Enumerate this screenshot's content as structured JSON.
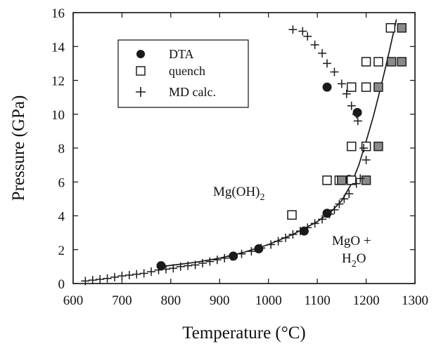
{
  "chart_data": {
    "type": "scatter",
    "xlabel": "Temperature (°C)",
    "ylabel": "Pressure (GPa)",
    "xlim": [
      600,
      1300
    ],
    "ylim": [
      0,
      16
    ],
    "xticks": [
      "600",
      "700",
      "800",
      "900",
      "1000",
      "1100",
      "1200",
      "1300"
    ],
    "yticks": [
      "0",
      "2",
      "4",
      "6",
      "8",
      "10",
      "12",
      "14",
      "16"
    ],
    "grid": false,
    "legend_position": "top-left",
    "series": [
      {
        "name": "DTA",
        "marker": "filled-circle",
        "color": "#1a1a1a",
        "points": [
          [
            780,
            1.05
          ],
          [
            928,
            1.62
          ],
          [
            980,
            2.05
          ],
          [
            1073,
            3.1
          ],
          [
            1120,
            4.15
          ],
          [
            1165,
            6.15
          ],
          [
            1182,
            10.1
          ],
          [
            1120,
            11.6
          ]
        ]
      },
      {
        "name": "quench",
        "marker": "open-square",
        "color": "#1a1a1a",
        "points": [
          [
            1048,
            4.05
          ],
          [
            1120,
            6.1
          ],
          [
            1145,
            6.1
          ],
          [
            1170,
            6.1
          ],
          [
            1170,
            8.1
          ],
          [
            1200,
            8.1
          ],
          [
            1170,
            11.6
          ],
          [
            1200,
            11.6
          ],
          [
            1200,
            13.1
          ],
          [
            1225,
            13.1
          ],
          [
            1250,
            15.1
          ]
        ]
      },
      {
        "name": "quench (shaded)",
        "marker": "shaded-square",
        "color": "#8a8a8a",
        "points": [
          [
            1150,
            6.1
          ],
          [
            1200,
            6.1
          ],
          [
            1225,
            8.1
          ],
          [
            1225,
            11.6
          ],
          [
            1252,
            13.1
          ],
          [
            1273,
            13.1
          ],
          [
            1273,
            15.1
          ]
        ]
      },
      {
        "name": "MD calc.",
        "marker": "plus",
        "color": "#1a1a1a",
        "points": [
          [
            625,
            0.15
          ],
          [
            640,
            0.2
          ],
          [
            655,
            0.25
          ],
          [
            670,
            0.3
          ],
          [
            685,
            0.38
          ],
          [
            700,
            0.45
          ],
          [
            715,
            0.5
          ],
          [
            730,
            0.55
          ],
          [
            745,
            0.6
          ],
          [
            760,
            0.7
          ],
          [
            775,
            0.8
          ],
          [
            790,
            0.85
          ],
          [
            805,
            0.9
          ],
          [
            820,
            1.0
          ],
          [
            835,
            1.05
          ],
          [
            850,
            1.1
          ],
          [
            865,
            1.2
          ],
          [
            880,
            1.3
          ],
          [
            895,
            1.4
          ],
          [
            910,
            1.5
          ],
          [
            925,
            1.6
          ],
          [
            945,
            1.75
          ],
          [
            965,
            1.9
          ],
          [
            985,
            2.1
          ],
          [
            1005,
            2.3
          ],
          [
            1020,
            2.5
          ],
          [
            1035,
            2.7
          ],
          [
            1050,
            2.9
          ],
          [
            1065,
            3.1
          ],
          [
            1080,
            3.3
          ],
          [
            1095,
            3.55
          ],
          [
            1110,
            3.8
          ],
          [
            1125,
            4.1
          ],
          [
            1135,
            4.35
          ],
          [
            1145,
            4.7
          ],
          [
            1155,
            5.0
          ],
          [
            1165,
            5.3
          ],
          [
            1180,
            5.9
          ],
          [
            1188,
            6.2
          ],
          [
            1200,
            7.3
          ],
          [
            1195,
            8.0
          ],
          [
            1183,
            9.6
          ],
          [
            1180,
            10.0
          ],
          [
            1170,
            10.5
          ],
          [
            1160,
            11.2
          ],
          [
            1150,
            11.8
          ],
          [
            1135,
            12.5
          ],
          [
            1120,
            13.0
          ],
          [
            1110,
            13.6
          ],
          [
            1095,
            14.1
          ],
          [
            1080,
            14.6
          ],
          [
            1070,
            14.9
          ],
          [
            1050,
            15.0
          ]
        ]
      }
    ],
    "boundary_curve": [
      [
        780,
        1.0
      ],
      [
        850,
        1.25
      ],
      [
        900,
        1.5
      ],
      [
        950,
        1.85
      ],
      [
        1000,
        2.3
      ],
      [
        1050,
        2.9
      ],
      [
        1100,
        3.65
      ],
      [
        1130,
        4.3
      ],
      [
        1150,
        4.9
      ],
      [
        1170,
        5.9
      ],
      [
        1185,
        7.0
      ],
      [
        1200,
        8.4
      ],
      [
        1215,
        9.9
      ],
      [
        1230,
        11.6
      ],
      [
        1245,
        13.4
      ],
      [
        1262,
        15.6
      ]
    ],
    "annotations": {
      "hydroxide_region": "Mg(OH)",
      "hydroxide_sub": "2",
      "oxide_line1": "MgO +",
      "oxide_line2_main": "H",
      "oxide_line2_sub": "2",
      "oxide_line2_end": "O"
    }
  }
}
